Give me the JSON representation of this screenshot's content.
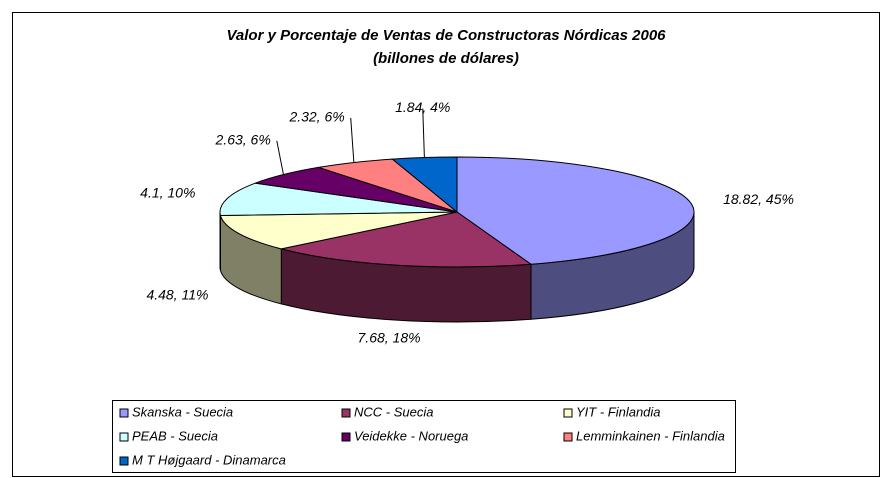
{
  "chart_data": {
    "type": "pie",
    "title": "Valor y Porcentaje de Ventas de Constructoras Nórdicas 2006",
    "subtitle": "(billones de dólares)",
    "categories": [
      "Skanska - Suecia",
      "NCC - Suecia",
      "YIT - Finlandia",
      "PEAB - Suecia",
      "Veidekke - Noruega",
      "Lemminkainen - Finlandia",
      "M T Højgaard - Dinamarca"
    ],
    "values": [
      18.82,
      7.68,
      4.48,
      4.1,
      2.63,
      2.32,
      1.84
    ],
    "value_labels": [
      "18.82, 45%",
      "7.68, 18%",
      "4.48, 11%",
      "4.1, 10%",
      "2.63, 6%",
      "2.32, 6%",
      "1.84, 4%"
    ],
    "colors": [
      "#9999ff",
      "#993366",
      "#ffffcc",
      "#ccffff",
      "#660066",
      "#ff8080",
      "#0066cc"
    ],
    "legend": "bottom"
  }
}
